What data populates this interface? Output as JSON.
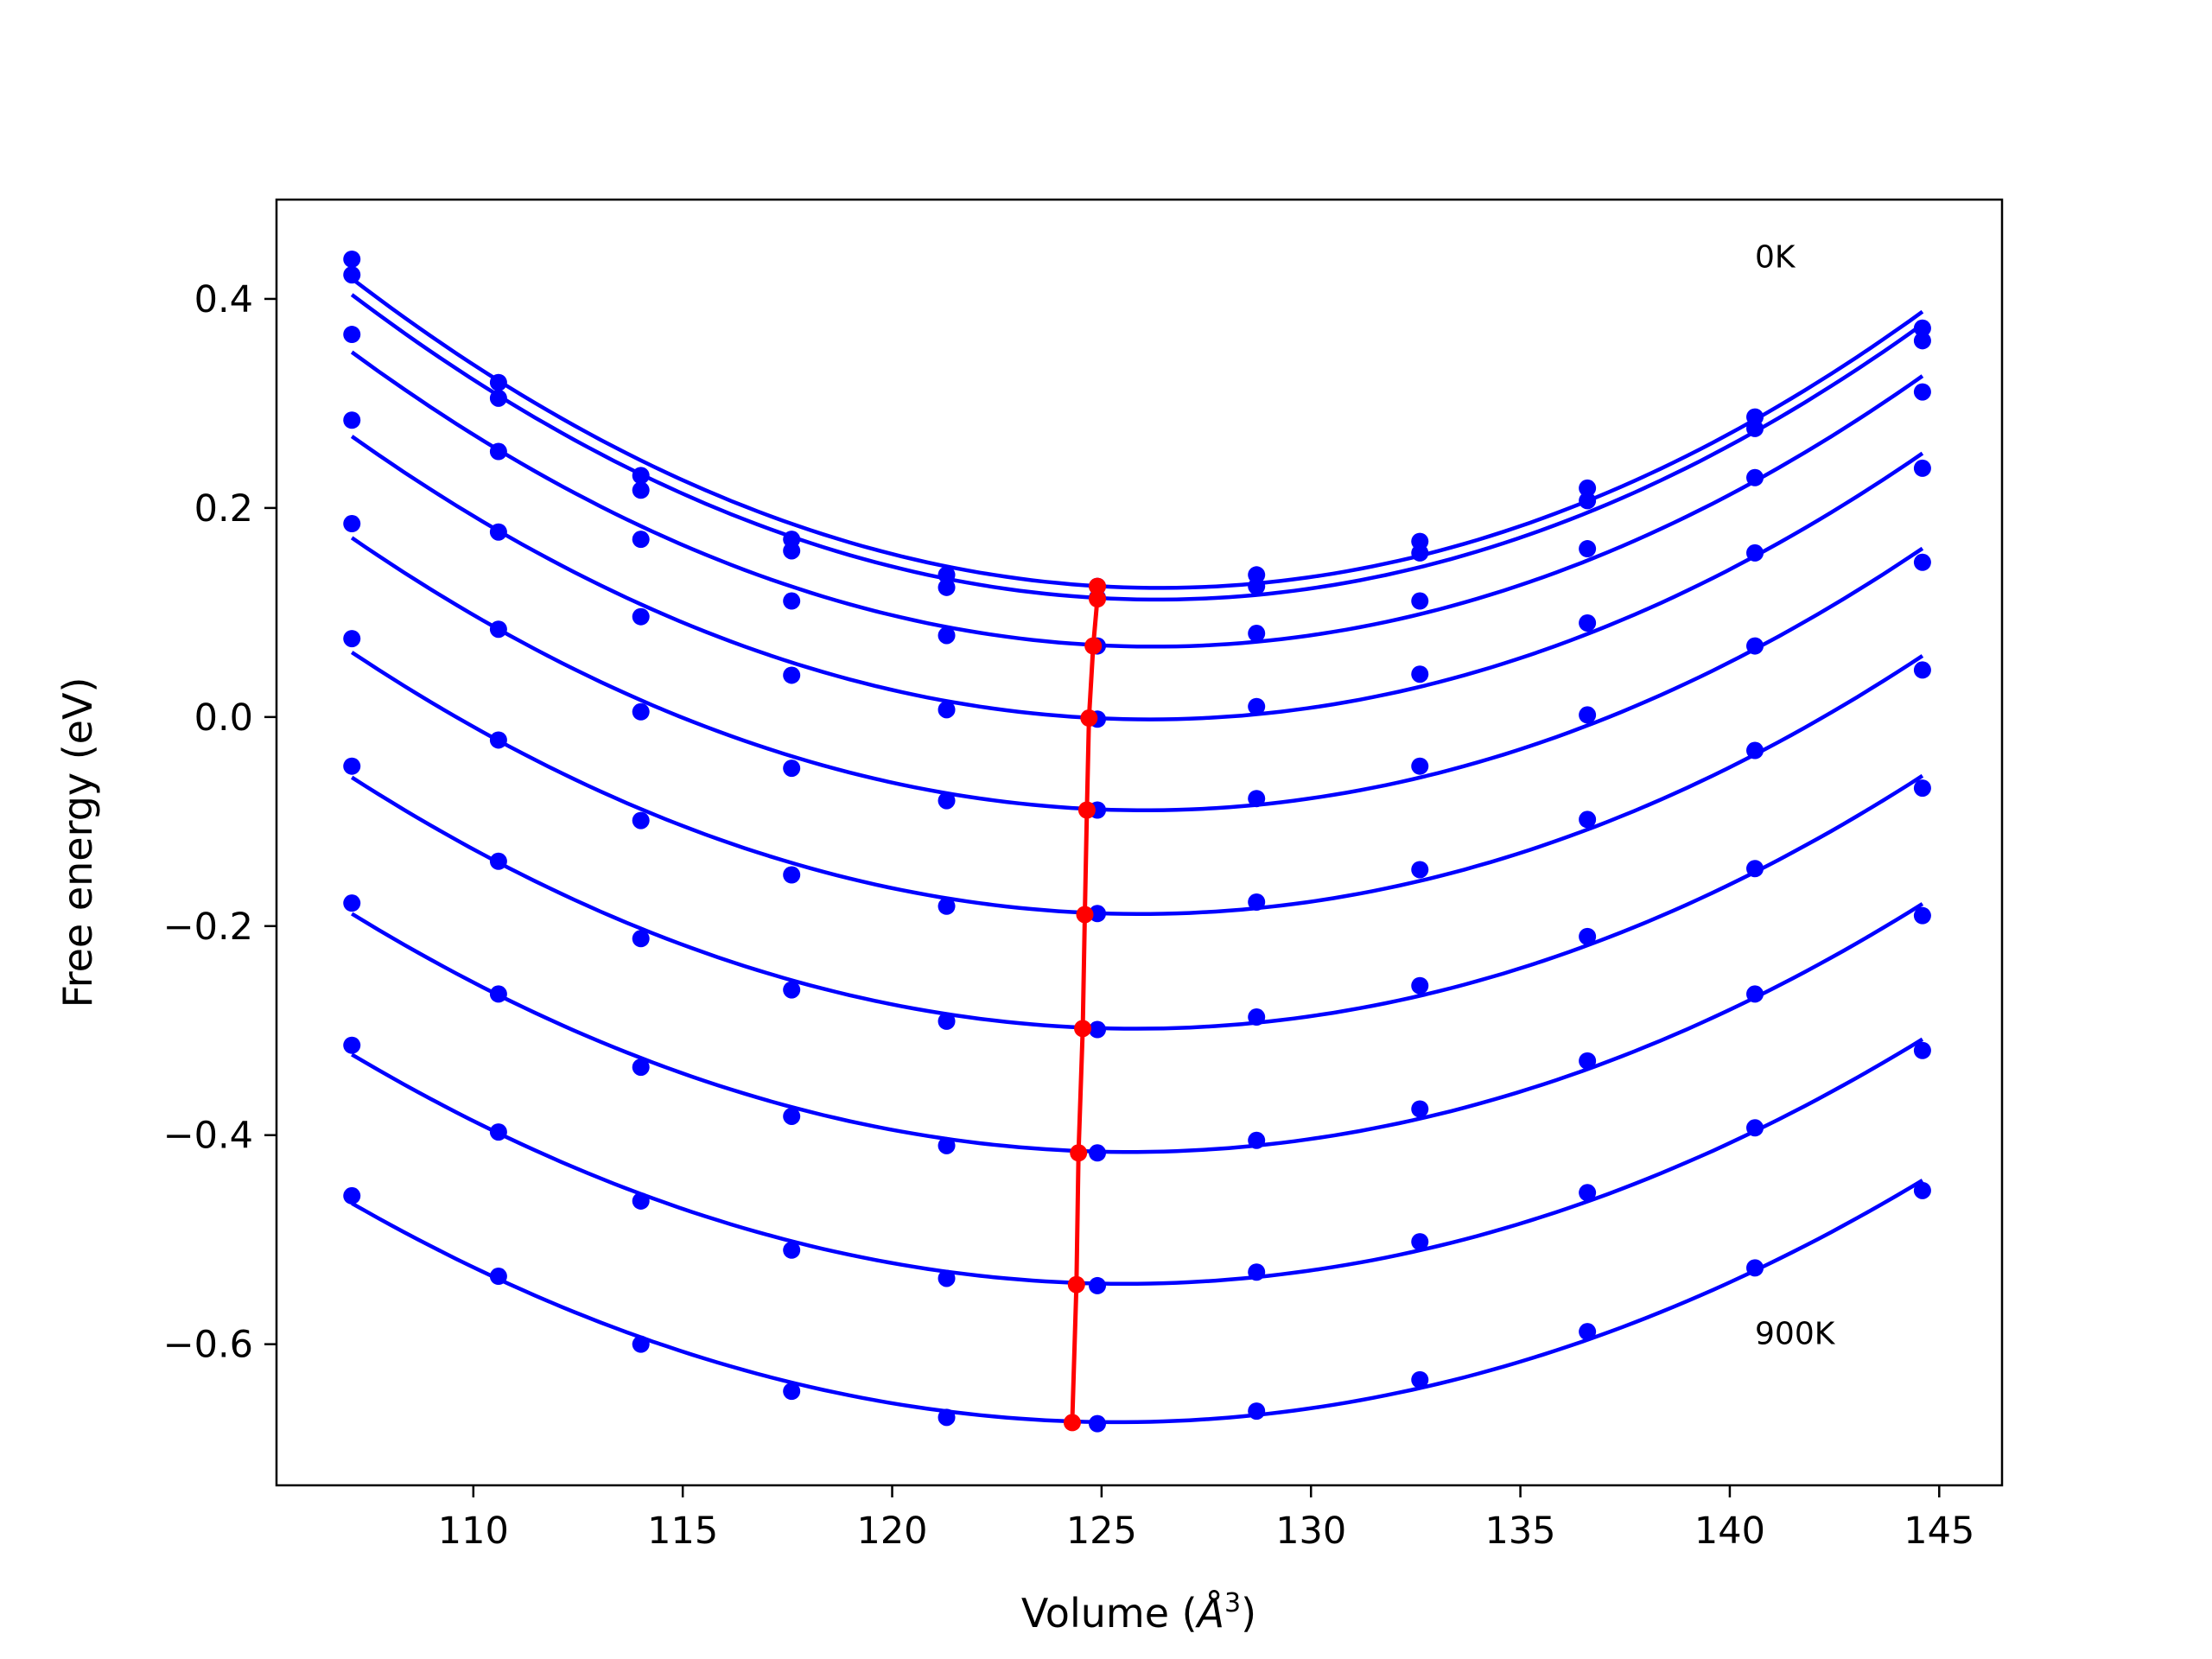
{
  "chart_data": {
    "type": "line",
    "xlabel": "Volume",
    "xlabel_unit_base": "Å",
    "xlabel_unit_exp": "3",
    "ylabel": "Free energy (eV)",
    "xlim": [
      105.3,
      146.5
    ],
    "ylim": [
      -0.735,
      0.495
    ],
    "x_ticks": [
      110,
      115,
      120,
      125,
      130,
      135,
      140,
      145
    ],
    "y_ticks": [
      -0.6,
      -0.4,
      -0.2,
      0.0,
      0.2,
      0.4
    ],
    "y_tick_labels": [
      "−0.6",
      "−0.4",
      "−0.2",
      "0.0",
      "0.2",
      "0.4"
    ],
    "grid": false,
    "annotations": [
      {
        "text": "0K",
        "x": 140.6,
        "y": 0.43
      },
      {
        "text": "900K",
        "x": 140.6,
        "y": -0.6
      }
    ],
    "x": [
      107.1,
      110.6,
      114.0,
      117.6,
      121.3,
      124.9,
      128.7,
      132.6,
      136.6,
      140.6,
      144.6
    ],
    "series": [
      {
        "values": [
          0.438,
          0.32,
          0.231,
          0.17,
          0.136,
          0.125,
          0.136,
          0.168,
          0.219,
          0.287,
          0.372
        ]
      },
      {
        "values": [
          0.423,
          0.305,
          0.217,
          0.159,
          0.124,
          0.114,
          0.125,
          0.157,
          0.207,
          0.276,
          0.36
        ]
      },
      {
        "values": [
          0.366,
          0.254,
          0.17,
          0.111,
          0.078,
          0.068,
          0.08,
          0.111,
          0.161,
          0.229,
          0.311
        ]
      },
      {
        "values": [
          0.284,
          0.177,
          0.096,
          0.04,
          0.007,
          -0.002,
          0.01,
          0.041,
          0.09,
          0.157,
          0.238
        ]
      },
      {
        "values": [
          0.185,
          0.084,
          0.005,
          -0.049,
          -0.08,
          -0.089,
          -0.078,
          -0.047,
          0.002,
          0.068,
          0.148
        ]
      },
      {
        "values": [
          0.075,
          -0.022,
          -0.099,
          -0.151,
          -0.181,
          -0.188,
          -0.177,
          -0.146,
          -0.098,
          -0.032,
          0.045
        ]
      },
      {
        "values": [
          -0.047,
          -0.138,
          -0.212,
          -0.261,
          -0.291,
          -0.299,
          -0.287,
          -0.257,
          -0.21,
          -0.145,
          -0.068
        ]
      },
      {
        "values": [
          -0.178,
          -0.265,
          -0.335,
          -0.382,
          -0.41,
          -0.417,
          -0.405,
          -0.375,
          -0.329,
          -0.265,
          -0.19
        ]
      },
      {
        "values": [
          -0.314,
          -0.397,
          -0.463,
          -0.51,
          -0.537,
          -0.544,
          -0.531,
          -0.502,
          -0.455,
          -0.393,
          -0.319
        ]
      },
      {
        "values": [
          -0.458,
          -0.535,
          -0.6,
          -0.645,
          -0.67,
          -0.676,
          -0.664,
          -0.634,
          -0.588,
          -0.527,
          -0.453
        ]
      }
    ],
    "minima": {
      "x": [
        124.9,
        124.9,
        124.8,
        124.7,
        124.65,
        124.6,
        124.55,
        124.45,
        124.4,
        124.3
      ],
      "y": [
        0.125,
        0.113,
        0.068,
        -0.001,
        -0.089,
        -0.189,
        -0.298,
        -0.417,
        -0.543,
        -0.675
      ]
    },
    "colors": {
      "curves": "#0000ff",
      "minima": "#ff0000",
      "frame": "#000000"
    }
  }
}
